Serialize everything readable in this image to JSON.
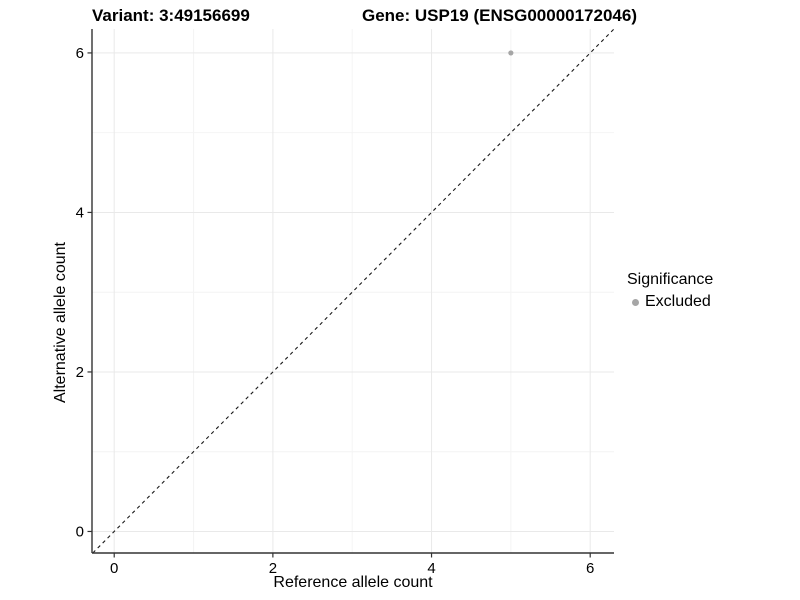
{
  "chart_data": {
    "type": "scatter",
    "title_left": "Variant: 3:49156699",
    "title_right": "Gene: USP19 (ENSG00000172046)",
    "xlabel": "Reference allele count",
    "ylabel": "Alternative allele count",
    "xlim": [
      -0.28,
      6.3
    ],
    "ylim": [
      -0.27,
      6.3
    ],
    "x_major_ticks": [
      0,
      2,
      4,
      6
    ],
    "x_minor_ticks": [
      1,
      3,
      5
    ],
    "y_major_ticks": [
      0,
      2,
      4,
      6
    ],
    "y_minor_ticks": [
      1,
      3,
      5
    ],
    "grid": true,
    "identity_line": {
      "style": "dashed",
      "slope": 1,
      "intercept": 0,
      "color": "#1a1a1a"
    },
    "series": [
      {
        "name": "Excluded",
        "color": "#a6a6a6",
        "points": [
          {
            "x": 5,
            "y": 6
          }
        ]
      }
    ],
    "legend": {
      "title": "Significance",
      "position": "right",
      "entries": [
        {
          "label": "Excluded",
          "color": "#a6a6a6"
        }
      ]
    },
    "colors": {
      "background": "#ffffff",
      "axis_line": "#333333",
      "grid_major": "#e9e9e9",
      "grid_minor": "#f4f4f4",
      "point": "#a6a6a6",
      "text": "#000000"
    }
  }
}
